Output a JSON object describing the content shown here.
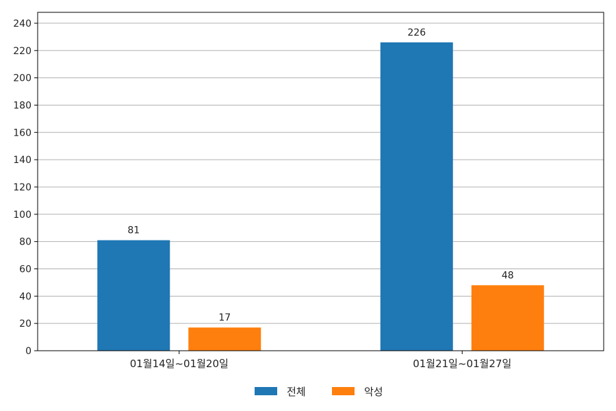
{
  "chart_data": {
    "type": "bar",
    "categories": [
      "01월14일~01월20일",
      "01월21일~01월27일"
    ],
    "series": [
      {
        "name": "전체",
        "values": [
          81,
          226
        ],
        "color": "#1f77b4"
      },
      {
        "name": "악성",
        "values": [
          17,
          48
        ],
        "color": "#ff7f0e"
      }
    ],
    "title": "",
    "xlabel": "",
    "ylabel": "",
    "ylim": [
      0,
      248
    ],
    "yticks": [
      0,
      20,
      40,
      60,
      80,
      100,
      120,
      140,
      160,
      180,
      200,
      220,
      240
    ],
    "grid": true,
    "legend_position": "bottom-center",
    "data_labels": true
  }
}
